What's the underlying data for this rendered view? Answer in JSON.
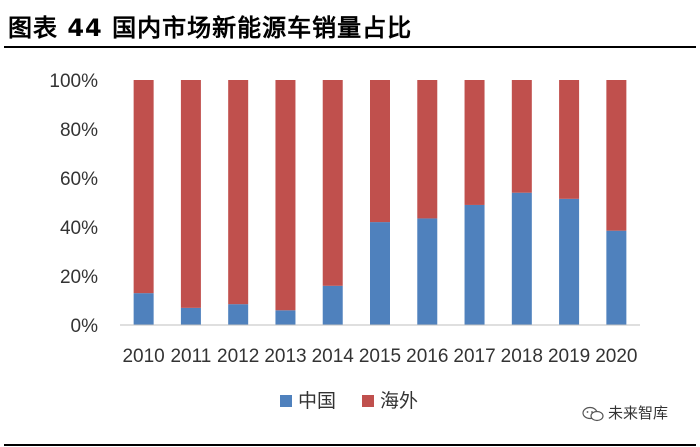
{
  "figure": {
    "title": "图表 44 国内市场新能源车销量占比",
    "watermark": "未来智库"
  },
  "colors": {
    "china": "#4F81BD",
    "overseas": "#C0504D",
    "axis": "#BFBFBF"
  },
  "chart_data": {
    "type": "bar",
    "stacked": true,
    "percent": true,
    "categories": [
      "2010",
      "2011",
      "2012",
      "2013",
      "2014",
      "2015",
      "2016",
      "2017",
      "2018",
      "2019",
      "2020"
    ],
    "series": [
      {
        "name": "中国",
        "values": [
          13,
          7,
          8.5,
          6,
          16,
          42,
          43.5,
          49,
          54,
          51.5,
          38.5
        ]
      },
      {
        "name": "海外",
        "values": [
          87,
          93,
          91.5,
          94,
          84,
          58,
          56.5,
          51,
          46,
          48.5,
          61.5
        ]
      }
    ],
    "ylim": [
      0,
      100
    ],
    "yticks": [
      "0%",
      "20%",
      "40%",
      "60%",
      "80%",
      "100%"
    ],
    "grid": false,
    "legend": "bottom-center"
  }
}
